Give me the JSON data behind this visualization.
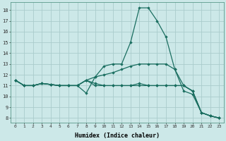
{
  "title": "",
  "xlabel": "Humidex (Indice chaleur)",
  "ylabel": "",
  "bg_color": "#cce8e8",
  "grid_color": "#aacccc",
  "line_color": "#1a6e60",
  "x_ticks": [
    0,
    1,
    2,
    3,
    4,
    5,
    6,
    7,
    8,
    9,
    10,
    11,
    12,
    13,
    14,
    15,
    16,
    17,
    18,
    19,
    20,
    21,
    22,
    23
  ],
  "y_ticks": [
    8,
    9,
    10,
    11,
    12,
    13,
    14,
    15,
    16,
    17,
    18
  ],
  "ylim": [
    7.6,
    18.7
  ],
  "xlim": [
    -0.5,
    23.5
  ],
  "series": [
    {
      "x": [
        0,
        1,
        2,
        3,
        4,
        5,
        6,
        7,
        8,
        9,
        10,
        11,
        12,
        13,
        14,
        15,
        16,
        17,
        18,
        19,
        20,
        21,
        22,
        23
      ],
      "y": [
        11.5,
        11.0,
        11.0,
        11.2,
        11.1,
        11.0,
        11.0,
        11.0,
        10.3,
        11.8,
        12.8,
        13.0,
        13.0,
        15.0,
        18.2,
        18.2,
        17.0,
        15.5,
        12.5,
        10.5,
        10.2,
        8.5,
        8.2,
        8.0
      ],
      "marker": "D",
      "markersize": 1.8,
      "lw": 0.9
    },
    {
      "x": [
        0,
        1,
        2,
        3,
        4,
        5,
        6,
        7,
        8,
        9,
        10,
        11,
        12,
        13,
        14,
        15,
        16,
        17,
        18,
        19,
        20,
        21,
        22,
        23
      ],
      "y": [
        11.5,
        11.0,
        11.0,
        11.2,
        11.1,
        11.0,
        11.0,
        11.0,
        11.5,
        11.0,
        11.0,
        11.0,
        11.0,
        11.0,
        11.0,
        11.0,
        11.0,
        11.0,
        11.0,
        11.0,
        10.5,
        8.5,
        8.2,
        8.0
      ],
      "marker": "D",
      "markersize": 1.8,
      "lw": 0.9
    },
    {
      "x": [
        0,
        1,
        2,
        3,
        4,
        5,
        6,
        7,
        8,
        9,
        10,
        11,
        12,
        13,
        14,
        15,
        16,
        17,
        18,
        19,
        20,
        21,
        22,
        23
      ],
      "y": [
        11.5,
        11.0,
        11.0,
        11.2,
        11.1,
        11.0,
        11.0,
        11.0,
        11.5,
        11.2,
        11.0,
        11.0,
        11.0,
        11.0,
        11.2,
        11.0,
        11.0,
        11.0,
        11.0,
        11.0,
        10.5,
        8.5,
        8.2,
        8.0
      ],
      "marker": "D",
      "markersize": 1.8,
      "lw": 0.9
    },
    {
      "x": [
        0,
        1,
        2,
        3,
        4,
        5,
        6,
        7,
        8,
        9,
        10,
        11,
        12,
        13,
        14,
        15,
        16,
        17,
        18,
        19,
        20,
        21,
        22,
        23
      ],
      "y": [
        11.5,
        11.0,
        11.0,
        11.2,
        11.1,
        11.0,
        11.0,
        11.0,
        11.5,
        11.8,
        12.0,
        12.2,
        12.5,
        12.8,
        13.0,
        13.0,
        13.0,
        13.0,
        12.5,
        11.0,
        10.5,
        8.5,
        8.2,
        8.0
      ],
      "marker": "D",
      "markersize": 1.8,
      "lw": 0.9
    }
  ]
}
